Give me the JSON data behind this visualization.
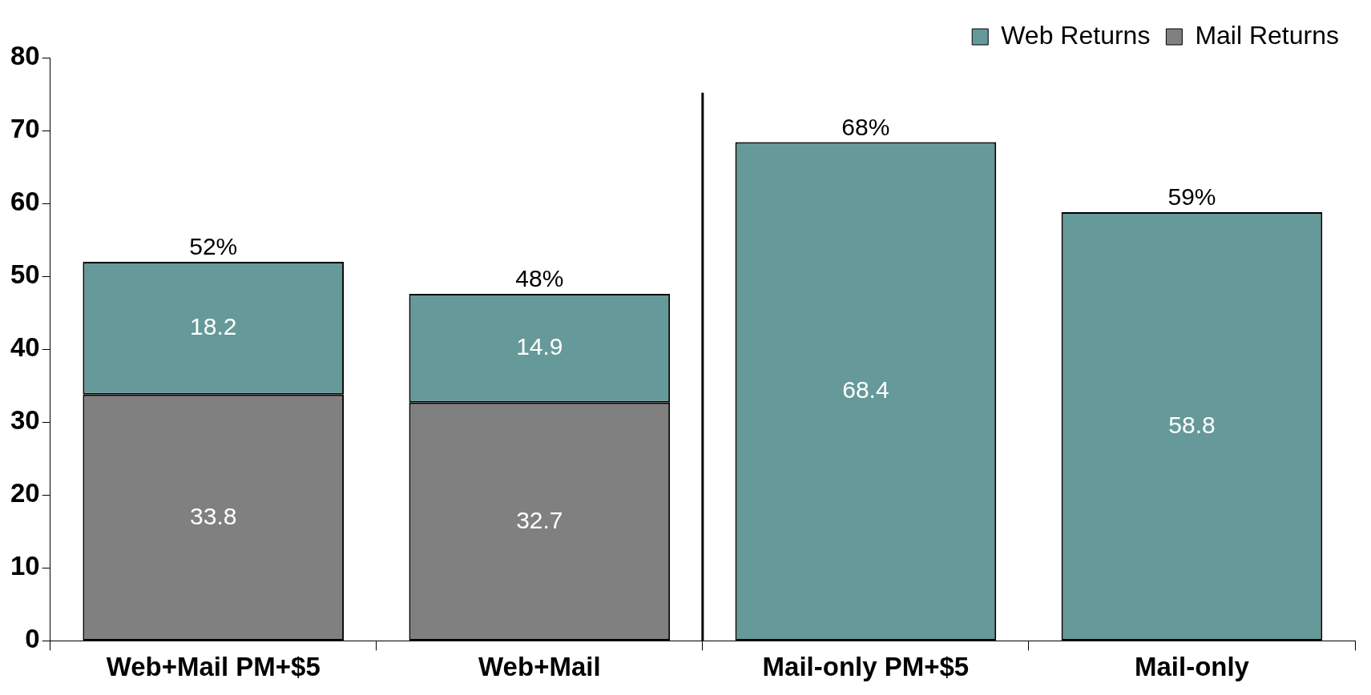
{
  "chart_data": {
    "type": "bar",
    "stacked": true,
    "categories": [
      "Web+Mail PM+$5",
      "Web+Mail",
      "Mail-only PM+$5",
      "Mail-only"
    ],
    "series": [
      {
        "name": "Mail Returns",
        "color": "#808080",
        "colors": [
          "#808080",
          "#808080",
          "#669999",
          "#669999"
        ],
        "values": [
          33.8,
          32.7,
          68.4,
          58.8
        ]
      },
      {
        "name": "Web Returns",
        "color": "#669999",
        "values": [
          18.2,
          14.9,
          null,
          null
        ]
      }
    ],
    "ylim": [
      0,
      80
    ],
    "yticks": [
      0,
      10,
      20,
      30,
      40,
      50,
      60,
      70,
      80
    ],
    "data_labels": true,
    "totals": [
      "52%",
      "48%",
      "68%",
      "59%"
    ],
    "grid": false,
    "legend": "top right"
  }
}
